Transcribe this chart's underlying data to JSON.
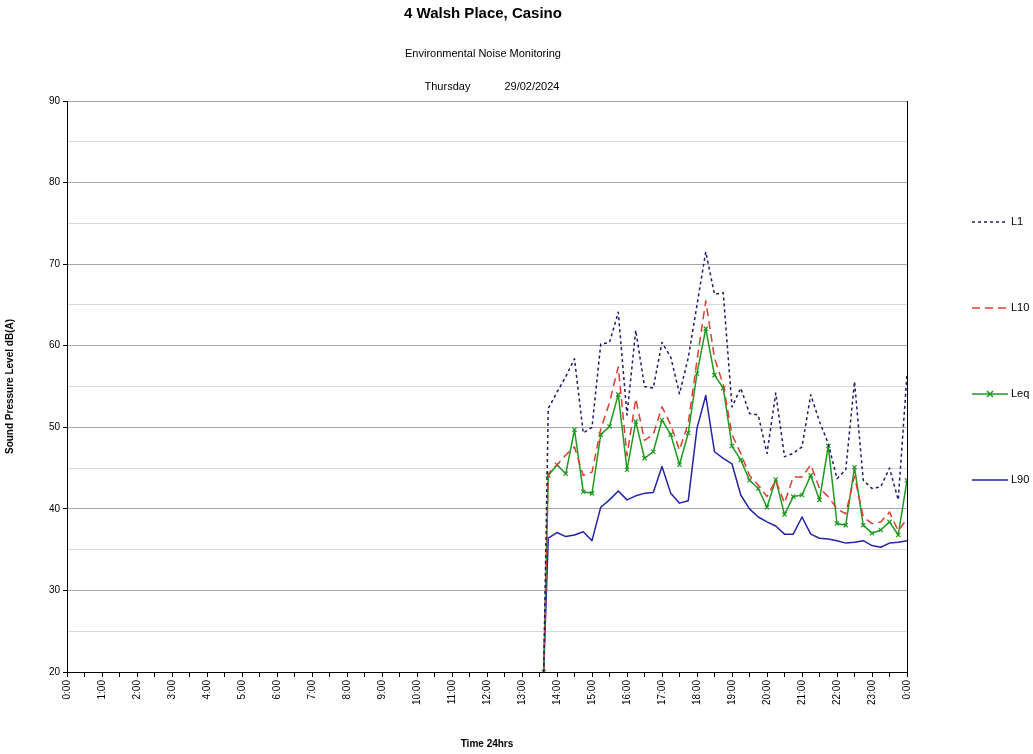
{
  "chart_data": {
    "type": "line",
    "title": "4 Walsh Place, Casino",
    "subtitle": "Environmental Noise Monitoring",
    "annotations": [
      "Thursday",
      "29/02/2024"
    ],
    "xlabel": "Time 24hrs",
    "ylabel": "Sound Pressure Level dB(A)",
    "x": [
      13.62,
      13.75,
      14,
      14.25,
      14.5,
      14.75,
      15,
      15.25,
      15.5,
      15.75,
      16,
      16.25,
      16.5,
      16.75,
      17,
      17.25,
      17.5,
      17.75,
      18,
      18.25,
      18.5,
      18.75,
      19,
      19.25,
      19.5,
      19.75,
      20,
      20.25,
      20.5,
      20.75,
      21,
      21.25,
      21.5,
      21.75,
      22,
      22.25,
      22.5,
      22.75,
      23,
      23.25,
      23.5,
      23.75,
      24
    ],
    "xlim": [
      0,
      24
    ],
    "xticks": [
      {
        "value": 0,
        "label": "0:00"
      },
      {
        "value": 0.5,
        "label": null
      },
      {
        "value": 1,
        "label": "1:00"
      },
      {
        "value": 1.5,
        "label": null
      },
      {
        "value": 2,
        "label": "2:00"
      },
      {
        "value": 2.5,
        "label": null
      },
      {
        "value": 3,
        "label": "3:00"
      },
      {
        "value": 3.5,
        "label": null
      },
      {
        "value": 4,
        "label": "4:00"
      },
      {
        "value": 4.5,
        "label": null
      },
      {
        "value": 5,
        "label": "5:00"
      },
      {
        "value": 5.5,
        "label": null
      },
      {
        "value": 6,
        "label": "6:00"
      },
      {
        "value": 6.5,
        "label": null
      },
      {
        "value": 7,
        "label": "7:00"
      },
      {
        "value": 7.5,
        "label": null
      },
      {
        "value": 8,
        "label": "8:00"
      },
      {
        "value": 8.5,
        "label": null
      },
      {
        "value": 9,
        "label": "9:00"
      },
      {
        "value": 9.5,
        "label": null
      },
      {
        "value": 10,
        "label": "10:00"
      },
      {
        "value": 10.5,
        "label": null
      },
      {
        "value": 11,
        "label": "11:00"
      },
      {
        "value": 11.5,
        "label": null
      },
      {
        "value": 12,
        "label": "12:00"
      },
      {
        "value": 12.5,
        "label": null
      },
      {
        "value": 13,
        "label": "13:00"
      },
      {
        "value": 13.5,
        "label": null
      },
      {
        "value": 14,
        "label": "14:00"
      },
      {
        "value": 14.5,
        "label": null
      },
      {
        "value": 15,
        "label": "15:00"
      },
      {
        "value": 15.5,
        "label": null
      },
      {
        "value": 16,
        "label": "16:00"
      },
      {
        "value": 16.5,
        "label": null
      },
      {
        "value": 17,
        "label": "17:00"
      },
      {
        "value": 17.5,
        "label": null
      },
      {
        "value": 18,
        "label": "18:00"
      },
      {
        "value": 18.5,
        "label": null
      },
      {
        "value": 19,
        "label": "19:00"
      },
      {
        "value": 19.5,
        "label": null
      },
      {
        "value": 20,
        "label": "20:00"
      },
      {
        "value": 20.5,
        "label": null
      },
      {
        "value": 21,
        "label": "21:00"
      },
      {
        "value": 21.5,
        "label": null
      },
      {
        "value": 22,
        "label": "22:00"
      },
      {
        "value": 22.5,
        "label": null
      },
      {
        "value": 23,
        "label": "23:00"
      },
      {
        "value": 23.5,
        "label": null
      },
      {
        "value": 24,
        "label": "0:00"
      }
    ],
    "ylim": [
      20,
      90
    ],
    "yticks": [
      20,
      {
        "value": 25,
        "label": null
      },
      30,
      {
        "value": 35,
        "label": null
      },
      40,
      {
        "value": 45,
        "label": null
      },
      50,
      {
        "value": 55,
        "label": null
      },
      60,
      {
        "value": 65,
        "label": null
      },
      70,
      {
        "value": 75,
        "label": null
      },
      80,
      {
        "value": 85,
        "label": null
      },
      90
    ],
    "grid": "y",
    "legend": "right",
    "marker": "none",
    "line_style": "solid",
    "series": [
      {
        "name": "L1",
        "color": "#1c1c6b",
        "line_style": "dotted",
        "values": [
          20,
          52.3,
          54.3,
          56.2,
          58.4,
          49.3,
          50.0,
          60.2,
          60.4,
          64.1,
          51.5,
          61.9,
          55.0,
          54.8,
          60.4,
          58.6,
          54.1,
          58.5,
          65.0,
          71.5,
          66.3,
          66.5,
          52.5,
          54.8,
          51.7,
          51.5,
          46.8,
          54.2,
          46.4,
          46.8,
          47.6,
          54.0,
          50.7,
          48.0,
          43.7,
          44.8,
          55.6,
          43.5,
          42.5,
          42.7,
          45.0,
          41.1,
          56.5
        ]
      },
      {
        "name": "L10",
        "color": "#e03c31",
        "line_style": "dashed",
        "values": [
          20,
          44.3,
          45.4,
          46.6,
          47.6,
          44.1,
          44.5,
          49.8,
          53.0,
          57.4,
          46.5,
          53.5,
          48.4,
          49.1,
          52.5,
          50.3,
          47.2,
          50.5,
          58.2,
          65.5,
          58.5,
          55.2,
          49.1,
          46.8,
          44.1,
          42.9,
          41.5,
          43.5,
          40.7,
          43.9,
          43.9,
          45.4,
          42.5,
          41.5,
          40.0,
          39.4,
          44.0,
          39.0,
          38.2,
          38.4,
          39.6,
          37.3,
          38.8
        ]
      },
      {
        "name": "Leq",
        "color": "#1e9a1e",
        "marker": "cross",
        "values": [
          20,
          44.1,
          45.4,
          44.3,
          49.7,
          42.1,
          41.9,
          49.1,
          50.1,
          54.0,
          44.8,
          50.7,
          46.2,
          47.0,
          50.9,
          49.1,
          45.4,
          49.3,
          56.6,
          62.1,
          56.4,
          54.8,
          47.7,
          46.0,
          43.5,
          42.5,
          40.2,
          43.6,
          39.3,
          41.5,
          41.7,
          44.1,
          41.1,
          47.7,
          38.2,
          38.0,
          45.1,
          38.0,
          37.0,
          37.4,
          38.4,
          36.8,
          43.5
        ]
      },
      {
        "name": "L90",
        "color": "#2323a8",
        "values": [
          20,
          36.4,
          37.1,
          36.6,
          36.8,
          37.2,
          36.1,
          40.2,
          41.1,
          42.2,
          41.1,
          41.6,
          41.9,
          42.0,
          45.2,
          41.9,
          40.7,
          41.0,
          49.9,
          53.9,
          47.0,
          46.2,
          45.5,
          41.7,
          40.0,
          39.0,
          38.4,
          37.9,
          36.9,
          36.9,
          39.0,
          36.9,
          36.4,
          36.3,
          36.1,
          35.8,
          35.9,
          36.1,
          35.5,
          35.3,
          35.8,
          35.9,
          36.1
        ]
      }
    ]
  }
}
